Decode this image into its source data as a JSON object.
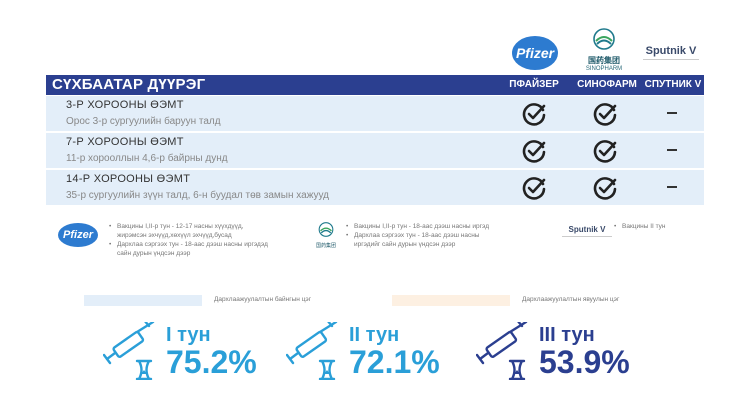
{
  "logos": {
    "pfizer": "Pfizer",
    "sino_cn": "国药集团",
    "sino_en": "SINOPHARM",
    "sputnik": "Sputnik V"
  },
  "table": {
    "title": "СҮХБААТАР ДҮҮРЭГ",
    "columns": [
      "ПФАЙЗЕР",
      "СИНОФАРМ",
      "СПУТНИК V"
    ],
    "rows": [
      {
        "name": "3-Р ХОРООНЫ ӨЭМТ",
        "address": "Орос 3-р сургуулийн баруун талд",
        "pfizer": true,
        "sinopharm": true,
        "sputnik": false
      },
      {
        "name": "7-Р ХОРООНЫ ӨЭМТ",
        "address": "11-р хорооллын 4,6-р байрны дунд",
        "pfizer": true,
        "sinopharm": true,
        "sputnik": false
      },
      {
        "name": "14-Р ХОРООНЫ ӨЭМТ",
        "address": "35-р сургуулийн зүүн талд, 6-н буудал төв замын хажууд",
        "pfizer": true,
        "sinopharm": true,
        "sputnik": false
      }
    ]
  },
  "notes": {
    "pfizer": [
      "Вакцины I,II-р тун - 12-17 насны хүүхдүүд, жирэмсэн эхчүүд,хөхүүл эхчүүд,бусад",
      "Дархлаа сэргээх тун - 18-аас дээш насны иргэдэд сайн дурын үндсэн дээр"
    ],
    "sinopharm": [
      "Вакцины I,II-р тун - 18-аас дээш насны иргэд",
      "Дархлаа сэргээх тун - 18-аас дээш насны иргэдийг сайн дурын үндсэн дээр"
    ],
    "sputnik": [
      "Вакцины II тун"
    ]
  },
  "legend": {
    "blue_label": "Дархлаажуулалтын байнгын цэг",
    "orange_label": "Дархлаажуулалтын явуулын цэг",
    "blue_color": "#e3eef9",
    "orange_color": "#fdf0e2"
  },
  "stats": [
    {
      "label": "I тун",
      "value": "75.2%",
      "color": "#2a9fd8"
    },
    {
      "label": "II тун",
      "value": "72.1%",
      "color": "#2a9fd8"
    },
    {
      "label": "III тун",
      "value": "53.9%",
      "color": "#2b3f90"
    }
  ],
  "icons": {
    "check": "check-circle-icon",
    "vaccine": "syringe-hourglass-icon"
  }
}
